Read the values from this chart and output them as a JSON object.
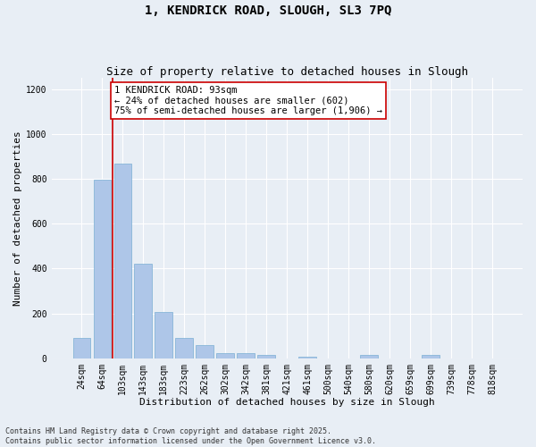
{
  "title1": "1, KENDRICK ROAD, SLOUGH, SL3 7PQ",
  "title2": "Size of property relative to detached houses in Slough",
  "xlabel": "Distribution of detached houses by size in Slough",
  "ylabel": "Number of detached properties",
  "categories": [
    "24sqm",
    "64sqm",
    "103sqm",
    "143sqm",
    "183sqm",
    "223sqm",
    "262sqm",
    "302sqm",
    "342sqm",
    "381sqm",
    "421sqm",
    "461sqm",
    "500sqm",
    "540sqm",
    "580sqm",
    "620sqm",
    "659sqm",
    "699sqm",
    "739sqm",
    "778sqm",
    "818sqm"
  ],
  "values": [
    90,
    795,
    868,
    420,
    205,
    90,
    57,
    22,
    22,
    13,
    0,
    7,
    0,
    0,
    13,
    0,
    0,
    13,
    0,
    0,
    0
  ],
  "bar_color": "#aec6e8",
  "bar_edge_color": "#7aafd4",
  "vline_x": 1.5,
  "vline_color": "#cc0000",
  "annotation_text": "1 KENDRICK ROAD: 93sqm\n← 24% of detached houses are smaller (602)\n75% of semi-detached houses are larger (1,906) →",
  "annotation_box_color": "#ffffff",
  "annotation_box_edge": "#cc0000",
  "ylim": [
    0,
    1250
  ],
  "yticks": [
    0,
    200,
    400,
    600,
    800,
    1000,
    1200
  ],
  "bg_color": "#e8eef5",
  "grid_color": "#ffffff",
  "footnote": "Contains HM Land Registry data © Crown copyright and database right 2025.\nContains public sector information licensed under the Open Government Licence v3.0.",
  "title1_fontsize": 10,
  "title2_fontsize": 9,
  "label_fontsize": 8,
  "tick_fontsize": 7,
  "annot_fontsize": 7.5,
  "footnote_fontsize": 6
}
